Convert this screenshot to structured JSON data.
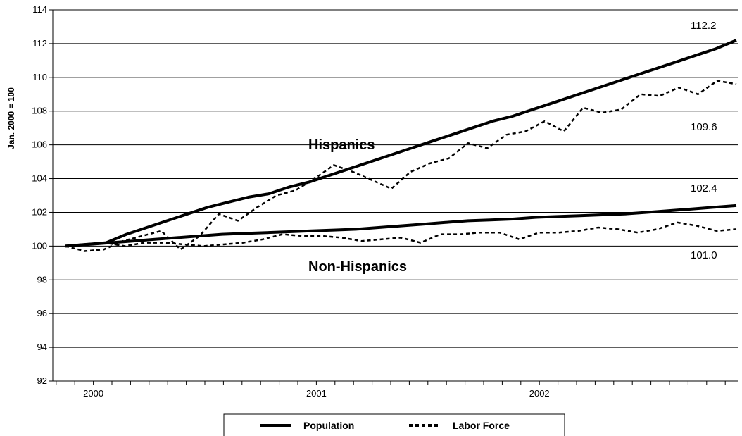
{
  "chart_data": {
    "type": "line",
    "ylabel": "Jan. 2000 = 100",
    "ylim": [
      92,
      114
    ],
    "yticks": [
      92,
      94,
      96,
      98,
      100,
      102,
      104,
      106,
      108,
      110,
      112,
      114
    ],
    "xlabel": "",
    "x_tick_labels": [
      "2000",
      "2001",
      "2002"
    ],
    "grid": "horizontal",
    "legend_position": "bottom",
    "legend": [
      {
        "label": "Population",
        "style": "solid"
      },
      {
        "label": "Labor Force",
        "style": "dotted"
      }
    ],
    "annotations": [
      {
        "text": "Hispanics"
      },
      {
        "text": "Non-Hispanics"
      }
    ],
    "end_labels": [
      "112.2",
      "109.6",
      "102.4",
      "101.0"
    ],
    "series": [
      {
        "group": "Hispanics",
        "measure": "Population",
        "style": "solid",
        "values": [
          100.0,
          100.1,
          100.2,
          100.7,
          101.1,
          101.5,
          101.9,
          102.3,
          102.6,
          102.9,
          103.1,
          103.5,
          103.8,
          104.2,
          104.6,
          105.0,
          105.4,
          105.8,
          106.2,
          106.6,
          107.0,
          107.4,
          107.7,
          108.1,
          108.5,
          108.9,
          109.3,
          109.7,
          110.1,
          110.5,
          110.9,
          111.3,
          111.7,
          112.2
        ]
      },
      {
        "group": "Hispanics",
        "measure": "Labor Force",
        "style": "dotted",
        "values": [
          100.0,
          99.7,
          99.8,
          100.3,
          100.6,
          100.9,
          99.8,
          100.6,
          101.9,
          101.5,
          102.3,
          103.0,
          103.3,
          104.0,
          104.8,
          104.4,
          103.9,
          103.4,
          104.4,
          104.9,
          105.2,
          106.1,
          105.8,
          106.6,
          106.8,
          107.4,
          106.8,
          108.2,
          107.9,
          108.1,
          109.0,
          108.9,
          109.4,
          109.0,
          109.8,
          109.6
        ]
      },
      {
        "group": "Non-Hispanics",
        "measure": "Population",
        "style": "solid",
        "values": [
          100.0,
          100.1,
          100.2,
          100.3,
          100.4,
          100.5,
          100.6,
          100.7,
          100.75,
          100.8,
          100.85,
          100.9,
          100.95,
          101.0,
          101.1,
          101.2,
          101.3,
          101.4,
          101.5,
          101.55,
          101.6,
          101.7,
          101.75,
          101.8,
          101.85,
          101.9,
          102.0,
          102.1,
          102.2,
          102.3,
          102.4
        ]
      },
      {
        "group": "Non-Hispanics",
        "measure": "Labor Force",
        "style": "dotted",
        "values": [
          100.0,
          100.1,
          100.2,
          100.0,
          100.2,
          100.2,
          100.1,
          100.0,
          100.1,
          100.2,
          100.4,
          100.7,
          100.6,
          100.6,
          100.5,
          100.3,
          100.4,
          100.5,
          100.2,
          100.7,
          100.7,
          100.8,
          100.8,
          100.4,
          100.8,
          100.8,
          100.9,
          101.1,
          101.0,
          100.8,
          101.0,
          101.4,
          101.2,
          100.9,
          101.0
        ]
      }
    ]
  }
}
